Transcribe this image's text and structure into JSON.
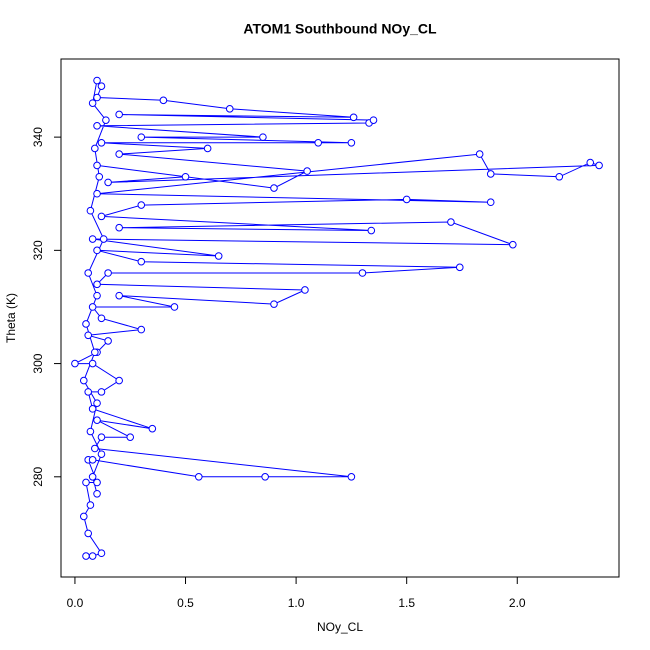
{
  "chart_data": {
    "type": "line",
    "title": "ATOM1 Southbound NOy_CL",
    "x_label": "NOy_CL",
    "y_label": "Theta (K)",
    "color": "#0000ff",
    "markers": true,
    "x": [
      0.05,
      0.08,
      0.12,
      0.06,
      0.04,
      0.07,
      0.05,
      0.1,
      0.06,
      0.08,
      0.56,
      0.86,
      1.25,
      0.09,
      0.12,
      0.25,
      0.1,
      0.35,
      0.08,
      0.06,
      0.12,
      0.2,
      0.08,
      0.0,
      0.1,
      0.15,
      0.06,
      0.3,
      0.12,
      0.08,
      0.45,
      0.2,
      0.9,
      1.04,
      0.1,
      0.15,
      1.3,
      1.74,
      0.3,
      0.1,
      0.65,
      0.08,
      1.98,
      1.7,
      0.2,
      1.34,
      0.12,
      0.3,
      1.5,
      1.88,
      0.1,
      1.83,
      1.88,
      2.19,
      2.33,
      2.37,
      0.15,
      0.5,
      0.1,
      0.9,
      1.05,
      0.2,
      0.6,
      0.12,
      1.1,
      1.25,
      0.3,
      0.85,
      0.1,
      1.33,
      1.35,
      0.2,
      1.26,
      0.7,
      0.4,
      0.1,
      0.12,
      0.1,
      0.08,
      0.14,
      0.09,
      0.11,
      0.07,
      0.13,
      0.06,
      0.1,
      0.05,
      0.09,
      0.04,
      0.1,
      0.07,
      0.12,
      0.08,
      0.1
    ],
    "values": [
      266,
      266,
      266.5,
      270,
      273,
      275,
      279,
      279,
      283,
      283,
      280,
      280,
      280,
      285,
      287,
      287,
      290,
      288.5,
      292,
      295,
      295,
      297,
      300,
      300,
      302,
      304,
      305,
      306,
      308,
      310,
      310,
      312,
      310.5,
      313,
      314,
      316,
      316,
      317,
      318,
      320,
      319,
      322,
      321,
      325,
      324,
      323.5,
      326,
      328,
      329,
      328.5,
      330,
      337,
      333.5,
      333,
      335.5,
      335,
      332,
      333,
      335,
      331,
      334,
      337,
      338,
      339,
      339,
      339,
      340,
      340,
      342,
      342.5,
      343,
      344,
      343.5,
      345,
      346.5,
      347,
      349,
      350,
      346,
      343,
      338,
      333,
      327,
      322,
      316,
      312,
      307,
      302,
      297,
      293,
      288,
      284,
      280,
      277
    ],
    "xlim": [
      -0.063,
      2.46
    ],
    "ylim": [
      262.3,
      353.8
    ],
    "xticks": [
      {
        "value": 0,
        "label": "0.0"
      },
      0.5,
      {
        "value": 1,
        "label": "1.0"
      },
      1.5,
      {
        "value": 2,
        "label": "2.0"
      }
    ],
    "yticks": [
      280,
      300,
      320,
      340
    ]
  }
}
